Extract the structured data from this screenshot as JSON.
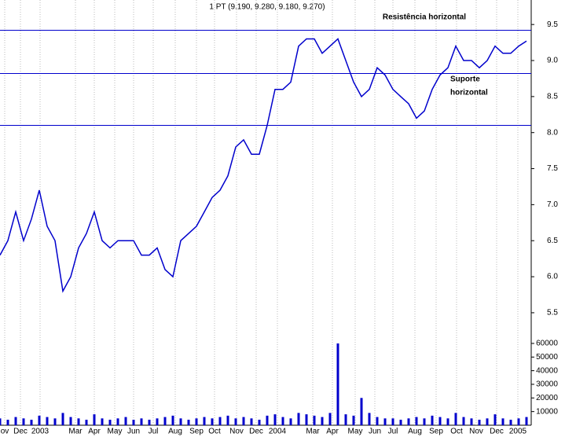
{
  "chart_data": [
    {
      "type": "line",
      "title": "1 PT (9.190, 9.280, 9.180, 9.270)",
      "color": "#0000cc",
      "values": [
        6.3,
        6.5,
        6.9,
        6.5,
        6.8,
        7.2,
        6.7,
        6.5,
        5.8,
        6.0,
        6.4,
        6.6,
        6.9,
        6.5,
        6.4,
        6.5,
        6.5,
        6.5,
        6.3,
        6.3,
        6.4,
        6.1,
        6.0,
        6.5,
        6.6,
        6.7,
        6.9,
        7.1,
        7.2,
        7.4,
        7.8,
        7.9,
        7.7,
        7.7,
        8.1,
        8.6,
        8.6,
        8.7,
        9.2,
        9.3,
        9.3,
        9.1,
        9.2,
        9.3,
        9.0,
        8.7,
        8.5,
        8.6,
        8.9,
        8.8,
        8.6,
        8.5,
        8.4,
        8.2,
        8.3,
        8.6,
        8.8,
        8.9,
        9.2,
        9.0,
        9.0,
        8.9,
        9.0,
        9.2,
        9.1,
        9.1,
        9.2,
        9.27
      ],
      "xlim": [
        0,
        67.6
      ],
      "ylim": [
        5.15,
        9.84
      ],
      "yticks": [
        5.5,
        {
          "value": 6,
          "label": "6.0"
        },
        6.5,
        {
          "value": 7,
          "label": "7.0"
        },
        7.5,
        {
          "value": 8,
          "label": "8.0"
        },
        8.5,
        {
          "value": 9,
          "label": "9.0"
        },
        9.5
      ],
      "hlines": [
        9.42,
        8.82,
        8.1
      ],
      "hline_color": "#0000cc",
      "annotations": [
        "Resistência horizontal",
        "Suporte",
        "horizontal"
      ],
      "annotation_color": "#0000cc"
    },
    {
      "type": "bar",
      "color": "#0000cc",
      "values": [
        5000,
        4000,
        6000,
        5000,
        4000,
        7000,
        6000,
        5000,
        9000,
        6000,
        5000,
        4000,
        8000,
        5000,
        4000,
        5000,
        6000,
        4000,
        5000,
        4000,
        5000,
        6000,
        7000,
        5000,
        4000,
        5000,
        6000,
        5000,
        6000,
        7000,
        5000,
        6000,
        5000,
        4000,
        7000,
        8000,
        6000,
        5000,
        9000,
        8000,
        7000,
        6000,
        9000,
        60000,
        8000,
        7000,
        20000,
        9000,
        6000,
        5000,
        5000,
        4000,
        5000,
        6000,
        5000,
        7000,
        6000,
        5000,
        9000,
        6000,
        5000,
        4000,
        5000,
        8000,
        5000,
        4000,
        5000,
        6000
      ],
      "xlim": [
        0,
        67.6
      ],
      "ylim": [
        0,
        64000
      ],
      "yticks": [
        10000,
        20000,
        30000,
        40000,
        50000,
        60000
      ],
      "xticks": [
        {
          "value": 0.6,
          "label": "ov"
        },
        {
          "value": 2.6,
          "label": "Dec"
        },
        {
          "value": 5.1,
          "label": "2003"
        },
        {
          "value": 9.6,
          "label": "Mar"
        },
        {
          "value": 12,
          "label": "Apr"
        },
        {
          "value": 14.6,
          "label": "May"
        },
        {
          "value": 17,
          "label": "Jun"
        },
        {
          "value": 19.5,
          "label": "Jul"
        },
        {
          "value": 22.3,
          "label": "Aug"
        },
        {
          "value": 25,
          "label": "Sep"
        },
        {
          "value": 27.3,
          "label": "Oct"
        },
        {
          "value": 30.1,
          "label": "Nov"
        },
        {
          "value": 32.6,
          "label": "Dec"
        },
        {
          "value": 35.3,
          "label": "2004"
        },
        {
          "value": 39.8,
          "label": "Mar"
        },
        {
          "value": 42.3,
          "label": "Apr"
        },
        {
          "value": 45.2,
          "label": "May"
        },
        {
          "value": 47.7,
          "label": "Jun"
        },
        {
          "value": 50,
          "label": "Jul"
        },
        {
          "value": 52.8,
          "label": "Aug"
        },
        {
          "value": 55.5,
          "label": "Sep"
        },
        {
          "value": 58.1,
          "label": "Oct"
        },
        {
          "value": 60.6,
          "label": "Nov"
        },
        {
          "value": 63.2,
          "label": "Dec"
        },
        {
          "value": 65.9,
          "label": "2005"
        }
      ]
    }
  ]
}
